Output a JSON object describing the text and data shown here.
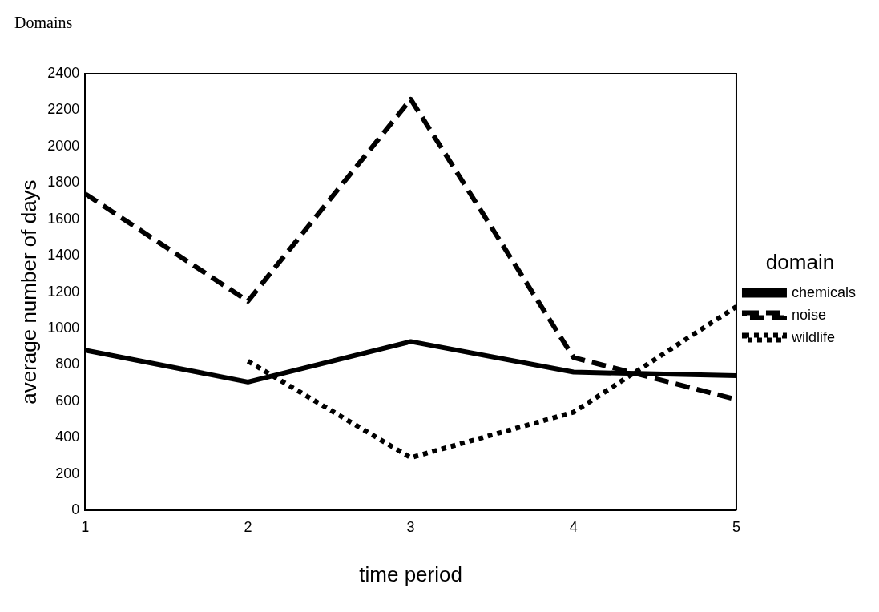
{
  "chart_data": {
    "type": "line",
    "title": "Domains",
    "xlabel": "time period",
    "ylabel": "average number of days",
    "legend_title": "domain",
    "x": [
      1,
      2,
      3,
      4,
      5
    ],
    "xlim": [
      1,
      5
    ],
    "xticks": [
      1,
      2,
      3,
      4,
      5
    ],
    "ylim": [
      0,
      2400
    ],
    "yticks": [
      0,
      200,
      400,
      600,
      800,
      1000,
      1200,
      1400,
      1600,
      1800,
      2000,
      2200,
      2400
    ],
    "grid": false,
    "legend": "right",
    "marker": "none",
    "series": [
      {
        "name": "chemicals",
        "color": "#000000",
        "line_style": "solid",
        "values": [
          880,
          706,
          928,
          760,
          740
        ]
      },
      {
        "name": "noise",
        "color": "#000000",
        "line_style": "dashed",
        "values": [
          1740,
          1150,
          2260,
          840,
          610
        ]
      },
      {
        "name": "wildlife",
        "color": "#000000",
        "line_style": "dotted",
        "values": [
          null,
          820,
          290,
          540,
          1120
        ]
      }
    ]
  }
}
